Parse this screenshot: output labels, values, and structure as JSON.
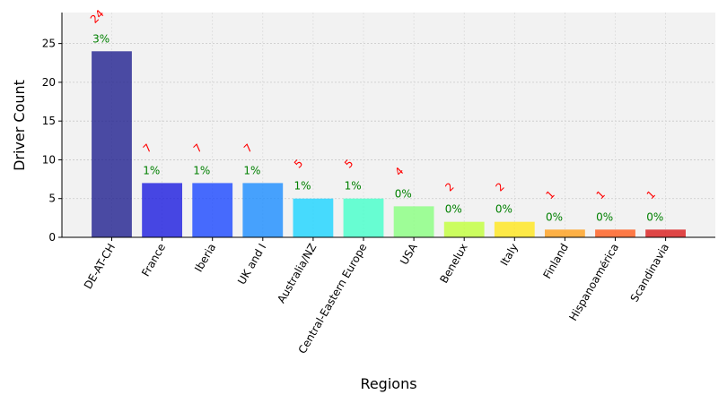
{
  "chart_data": {
    "type": "bar",
    "title": "",
    "xlabel": "Regions",
    "ylabel": "Driver Count",
    "ylim": [
      0,
      29
    ],
    "yticks": [
      0,
      5,
      10,
      15,
      20,
      25
    ],
    "grid": true,
    "categories": [
      "DE-AT-CH",
      "France",
      "Iberia",
      "UK and I",
      "Australia/NZ",
      "Central-Eastern Europe",
      "USA",
      "Benelux",
      "Italy",
      "Finland",
      "Hispanoamérica",
      "Scandinavia"
    ],
    "values": [
      24,
      7,
      7,
      7,
      5,
      5,
      4,
      2,
      2,
      1,
      1,
      1
    ],
    "percent_labels": [
      "3%",
      "1%",
      "1%",
      "1%",
      "1%",
      "1%",
      "0%",
      "0%",
      "0%",
      "0%",
      "0%",
      "0%"
    ],
    "bar_colors": [
      "#1f1f8f",
      "#1a1adf",
      "#1a47ff",
      "#1a8cff",
      "#1ad3ff",
      "#44ffc9",
      "#88ff80",
      "#c0ff3a",
      "#ffe61a",
      "#ff9f1a",
      "#ff5a1a",
      "#d91a1a"
    ],
    "count_label_color": "#ff0000",
    "percent_label_color": "#008000",
    "plot_background": "#f2f2f2"
  }
}
